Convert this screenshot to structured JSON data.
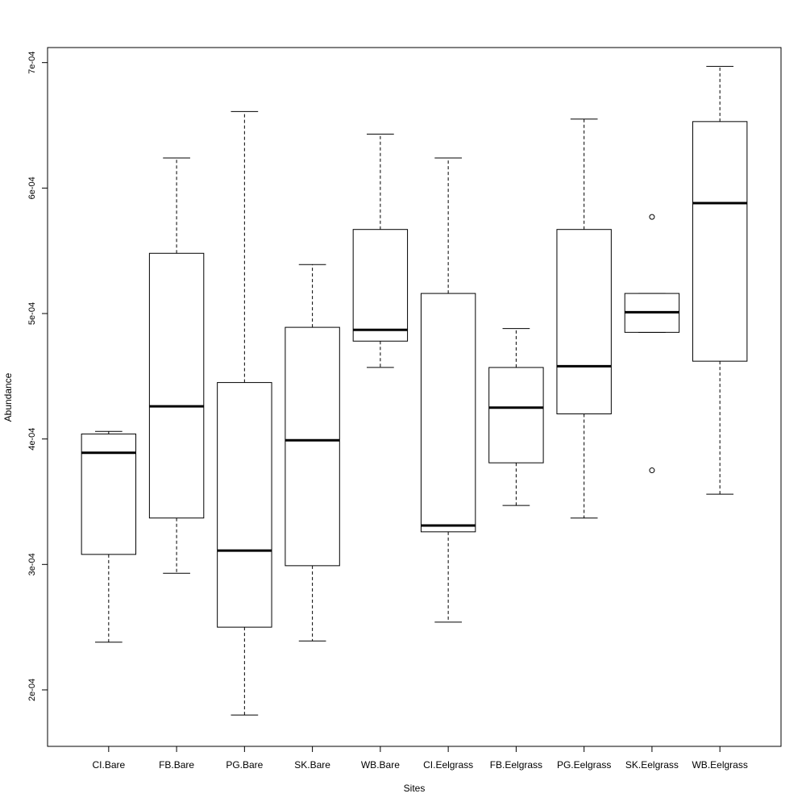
{
  "chart_data": {
    "type": "boxplot",
    "title": "",
    "xlabel": "Sites",
    "ylabel": "Abundance",
    "ylim": [
      0.000155,
      0.000712
    ],
    "yticks": [
      0.0002,
      0.0003,
      0.0004,
      0.0005,
      0.0006,
      0.0007
    ],
    "ytick_labels": [
      "2e-04",
      "3e-04",
      "4e-04",
      "5e-04",
      "6e-04",
      "7e-04"
    ],
    "categories": [
      "CI.Bare",
      "FB.Bare",
      "PG.Bare",
      "SK.Bare",
      "WB.Bare",
      "CI.Eelgrass",
      "FB.Eelgrass",
      "PG.Eelgrass",
      "SK.Eelgrass",
      "WB.Eelgrass"
    ],
    "boxes": [
      {
        "lower_whisker": 0.000238,
        "q1": 0.000308,
        "median": 0.000389,
        "q3": 0.000404,
        "upper_whisker": 0.000406,
        "outliers": []
      },
      {
        "lower_whisker": 0.000293,
        "q1": 0.000337,
        "median": 0.000426,
        "q3": 0.000548,
        "upper_whisker": 0.000624,
        "outliers": []
      },
      {
        "lower_whisker": 0.00018,
        "q1": 0.00025,
        "median": 0.000311,
        "q3": 0.000445,
        "upper_whisker": 0.000661,
        "outliers": []
      },
      {
        "lower_whisker": 0.000239,
        "q1": 0.000299,
        "median": 0.000399,
        "q3": 0.000489,
        "upper_whisker": 0.000539,
        "outliers": []
      },
      {
        "lower_whisker": 0.000457,
        "q1": 0.000478,
        "median": 0.000487,
        "q3": 0.000567,
        "upper_whisker": 0.000643,
        "outliers": []
      },
      {
        "lower_whisker": 0.000254,
        "q1": 0.000326,
        "median": 0.000331,
        "q3": 0.000516,
        "upper_whisker": 0.000624,
        "outliers": []
      },
      {
        "lower_whisker": 0.000347,
        "q1": 0.000381,
        "median": 0.000425,
        "q3": 0.000457,
        "upper_whisker": 0.000488,
        "outliers": []
      },
      {
        "lower_whisker": 0.000337,
        "q1": 0.00042,
        "median": 0.000458,
        "q3": 0.000567,
        "upper_whisker": 0.000655,
        "outliers": []
      },
      {
        "lower_whisker": 0.000485,
        "q1": 0.000485,
        "median": 0.000501,
        "q3": 0.000516,
        "upper_whisker": 0.000516,
        "outliers": [
          0.000577,
          0.000375
        ]
      },
      {
        "lower_whisker": 0.000356,
        "q1": 0.000462,
        "median": 0.000588,
        "q3": 0.000653,
        "upper_whisker": 0.000697,
        "outliers": []
      }
    ],
    "grid": false,
    "legend": "none"
  }
}
